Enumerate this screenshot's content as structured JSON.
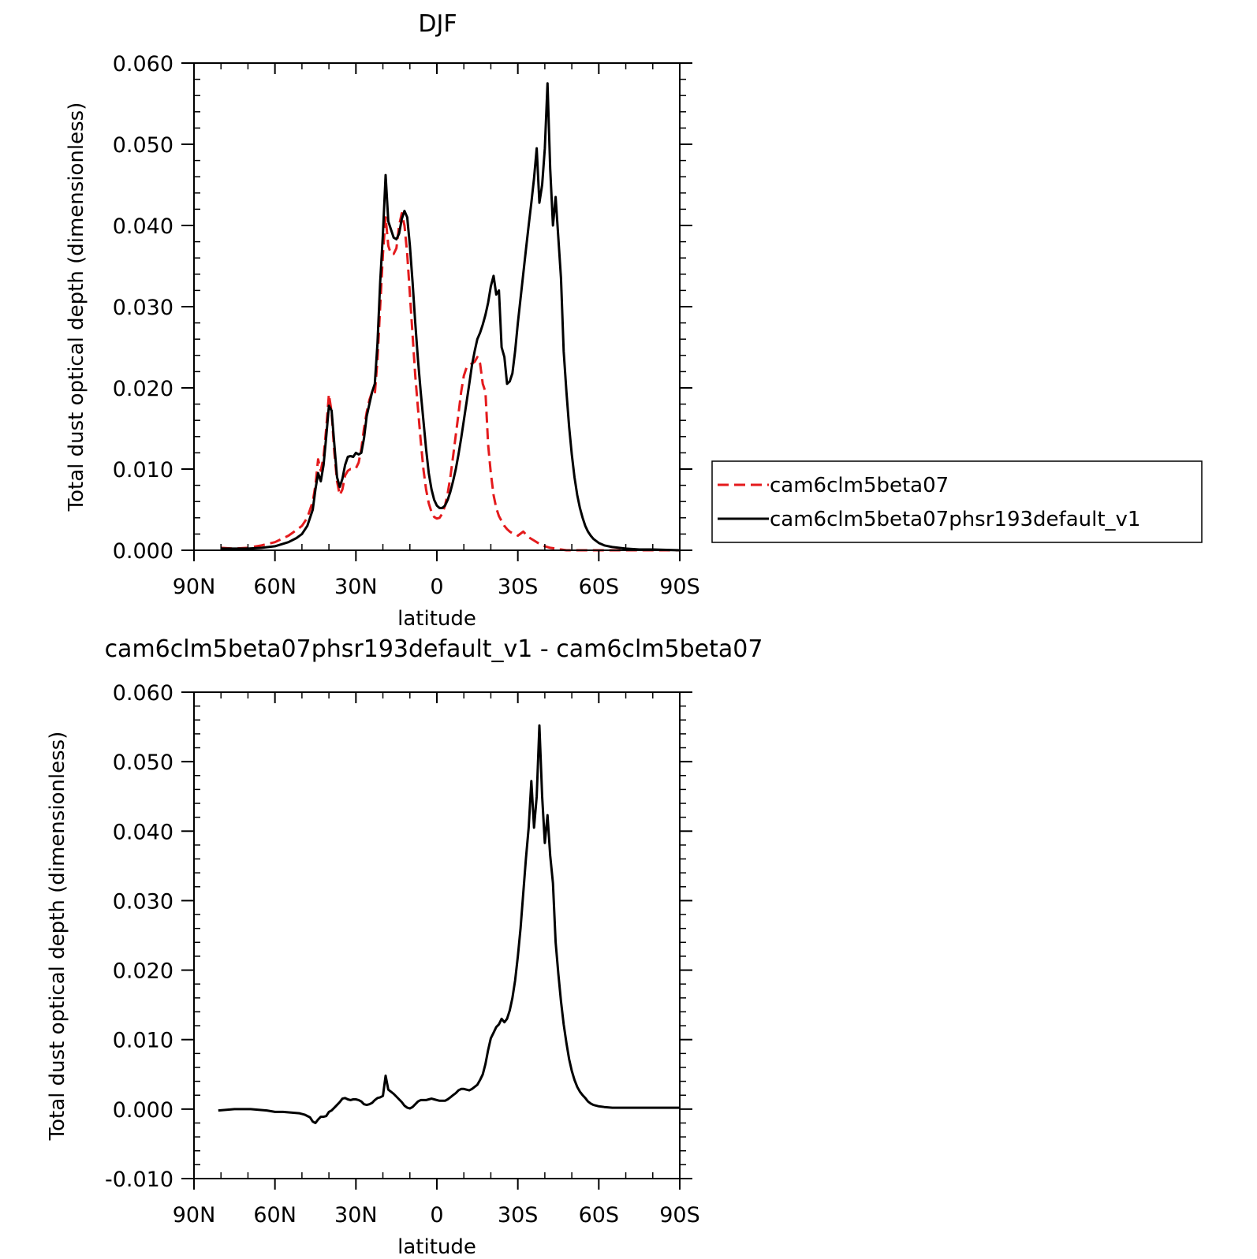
{
  "chart_data": [
    {
      "type": "line",
      "title": "DJF",
      "xlabel": "latitude",
      "ylabel": "Total dust optical depth (dimensionless)",
      "xlim": [
        90,
        -90
      ],
      "ylim": [
        0,
        0.06
      ],
      "xticks": [
        90,
        60,
        30,
        0,
        -30,
        -60,
        -90
      ],
      "xtick_labels": [
        "90N",
        "60N",
        "30N",
        "0",
        "30S",
        "60S",
        "90S"
      ],
      "yticks": [
        0,
        0.01,
        0.02,
        0.03,
        0.04,
        0.05,
        0.06
      ],
      "ytick_labels": [
        "0.000",
        "0.010",
        "0.020",
        "0.030",
        "0.040",
        "0.050",
        "0.060"
      ],
      "legend_position": "right",
      "grid": false,
      "series": [
        {
          "name": "cam6clm5beta07",
          "color": "#e41a1c",
          "dash": "dashed",
          "x": [
            80,
            75,
            70,
            65,
            60,
            55,
            52,
            50,
            48,
            46,
            45,
            44,
            43,
            42,
            41,
            40,
            39,
            38,
            37,
            36,
            35,
            34,
            33,
            32,
            31,
            30,
            29,
            28,
            27,
            26,
            25,
            24,
            23,
            22,
            21,
            20,
            19,
            18,
            17,
            16,
            15,
            14,
            13,
            12,
            11,
            10,
            9,
            8,
            7,
            6,
            5,
            4,
            3,
            2,
            1,
            0,
            -1,
            -2,
            -3,
            -4,
            -5,
            -6,
            -7,
            -8,
            -9,
            -10,
            -11,
            -12,
            -13,
            -14,
            -15,
            -16,
            -17,
            -18,
            -19,
            -20,
            -21,
            -22,
            -23,
            -24,
            -25,
            -26,
            -27,
            -28,
            -29,
            -30,
            -32,
            -34,
            -36,
            -38,
            -40,
            -42,
            -44,
            -45,
            -46,
            -48,
            -50,
            -55,
            -60,
            -65,
            -70,
            -80,
            -90
          ],
          "y": [
            0.0003,
            0.0002,
            0.0003,
            0.0006,
            0.001,
            0.0018,
            0.0025,
            0.003,
            0.004,
            0.006,
            0.008,
            0.0112,
            0.0098,
            0.0115,
            0.015,
            0.0192,
            0.017,
            0.012,
            0.0085,
            0.0068,
            0.0075,
            0.0092,
            0.0098,
            0.01,
            0.01,
            0.0101,
            0.0108,
            0.0125,
            0.015,
            0.017,
            0.0185,
            0.0195,
            0.0192,
            0.0235,
            0.03,
            0.0365,
            0.041,
            0.0375,
            0.0365,
            0.0365,
            0.0372,
            0.04,
            0.0415,
            0.04,
            0.0365,
            0.0315,
            0.0265,
            0.0215,
            0.0175,
            0.0135,
            0.01,
            0.0075,
            0.0058,
            0.0047,
            0.0041,
            0.0039,
            0.004,
            0.0045,
            0.0055,
            0.007,
            0.009,
            0.0115,
            0.0142,
            0.0168,
            0.0195,
            0.0215,
            0.0225,
            0.0228,
            0.023,
            0.0232,
            0.0238,
            0.023,
            0.0205,
            0.0195,
            0.013,
            0.0095,
            0.0068,
            0.0052,
            0.0042,
            0.0036,
            0.003,
            0.0026,
            0.0023,
            0.0021,
            0.002,
            0.0018,
            0.0023,
            0.0016,
            0.0012,
            0.0008,
            0.0005,
            0.0003,
            0.0002,
            0.0001,
            0.0001,
            0.0,
            0.0,
            0.0,
            0.0,
            0.0,
            0.0,
            0.0,
            0.0
          ]
        },
        {
          "name": "cam6clm5beta07phsr193default_v1",
          "color": "#000000",
          "dash": "solid",
          "x": [
            80,
            75,
            70,
            65,
            60,
            55,
            52,
            50,
            48,
            46,
            45,
            44,
            43,
            42,
            41,
            40,
            39,
            38,
            37,
            36,
            35,
            34,
            33,
            32,
            31,
            30,
            29,
            28,
            27,
            26,
            25,
            24,
            23,
            22,
            21,
            20,
            19,
            18,
            17,
            16,
            15,
            14,
            13,
            12,
            11,
            10,
            9,
            8,
            7,
            6,
            5,
            4,
            3,
            2,
            1,
            0,
            -1,
            -2,
            -3,
            -4,
            -5,
            -6,
            -7,
            -8,
            -9,
            -10,
            -11,
            -12,
            -13,
            -14,
            -15,
            -16,
            -17,
            -18,
            -19,
            -20,
            -21,
            -22,
            -23,
            -24,
            -25,
            -26,
            -27,
            -28,
            -29,
            -30,
            -31,
            -32,
            -33,
            -34,
            -35,
            -36,
            -37,
            -38,
            -39,
            -40,
            -41,
            -42,
            -43,
            -44,
            -45,
            -46,
            -47,
            -48,
            -49,
            -50,
            -51,
            -52,
            -53,
            -54,
            -55,
            -56,
            -57,
            -58,
            -60,
            -62,
            -65,
            -70,
            -75,
            -80,
            -90
          ],
          "y": [
            0.0002,
            0.0002,
            0.0002,
            0.0003,
            0.0005,
            0.001,
            0.0015,
            0.002,
            0.003,
            0.005,
            0.0075,
            0.0095,
            0.0085,
            0.0105,
            0.014,
            0.0178,
            0.0172,
            0.013,
            0.009,
            0.0078,
            0.0088,
            0.0105,
            0.0115,
            0.0116,
            0.0115,
            0.012,
            0.0118,
            0.012,
            0.0138,
            0.0165,
            0.018,
            0.0195,
            0.0205,
            0.0255,
            0.033,
            0.039,
            0.0462,
            0.0405,
            0.0395,
            0.0385,
            0.0383,
            0.039,
            0.0408,
            0.0418,
            0.041,
            0.0375,
            0.033,
            0.028,
            0.0235,
            0.0195,
            0.016,
            0.0125,
            0.0095,
            0.0075,
            0.0062,
            0.0055,
            0.0052,
            0.0052,
            0.0055,
            0.0062,
            0.0072,
            0.0085,
            0.01,
            0.0118,
            0.0138,
            0.016,
            0.0182,
            0.0205,
            0.0228,
            0.0245,
            0.026,
            0.0268,
            0.0278,
            0.029,
            0.0305,
            0.0325,
            0.0338,
            0.0315,
            0.032,
            0.025,
            0.0238,
            0.0205,
            0.0208,
            0.0218,
            0.0245,
            0.028,
            0.031,
            0.034,
            0.037,
            0.04,
            0.0428,
            0.0458,
            0.0495,
            0.0428,
            0.045,
            0.0495,
            0.0575,
            0.047,
            0.04,
            0.0435,
            0.0385,
            0.0335,
            0.0245,
            0.0195,
            0.0152,
            0.0118,
            0.009,
            0.0068,
            0.0052,
            0.004,
            0.003,
            0.0023,
            0.0018,
            0.0014,
            0.0009,
            0.0006,
            0.0004,
            0.0002,
            0.0001,
            0.0001,
            0.0
          ]
        }
      ]
    },
    {
      "type": "line",
      "title": "cam6clm5beta07phsr193default_v1 - cam6clm5beta07",
      "xlabel": "latitude",
      "ylabel": "Total dust optical depth (dimensionless)",
      "xlim": [
        90,
        -90
      ],
      "ylim": [
        -0.01,
        0.06
      ],
      "xticks": [
        90,
        60,
        30,
        0,
        -30,
        -60,
        -90
      ],
      "xtick_labels": [
        "90N",
        "60N",
        "30N",
        "0",
        "30S",
        "60S",
        "90S"
      ],
      "yticks": [
        -0.01,
        0,
        0.01,
        0.02,
        0.03,
        0.04,
        0.05,
        0.06
      ],
      "ytick_labels": [
        "-0.010",
        "0.000",
        "0.010",
        "0.020",
        "0.030",
        "0.040",
        "0.050",
        "0.060"
      ],
      "grid": false,
      "series": [
        {
          "color": "#000000",
          "dash": "solid",
          "x": [
            81,
            78,
            75,
            72,
            69,
            66,
            63,
            60,
            57,
            54,
            51,
            49,
            47,
            46,
            45,
            44,
            43,
            42,
            41,
            40,
            39,
            38,
            37,
            36,
            35,
            34,
            33,
            32,
            31,
            30,
            29,
            28,
            27,
            26,
            25,
            24,
            23,
            22,
            21,
            20,
            19,
            18,
            17,
            16,
            15,
            14,
            13,
            12,
            11,
            10,
            9,
            8,
            7,
            6,
            5,
            4,
            3,
            2,
            1,
            0,
            -1,
            -2,
            -3,
            -4,
            -5,
            -6,
            -7,
            -8,
            -9,
            -10,
            -11,
            -12,
            -13,
            -14,
            -15,
            -16,
            -17,
            -18,
            -19,
            -20,
            -21,
            -22,
            -23,
            -24,
            -25,
            -26,
            -27,
            -28,
            -29,
            -30,
            -31,
            -32,
            -33,
            -34,
            -35,
            -36,
            -37,
            -38,
            -39,
            -40,
            -41,
            -42,
            -43,
            -44,
            -45,
            -46,
            -47,
            -48,
            -49,
            -50,
            -51,
            -52,
            -53,
            -54,
            -55,
            -56,
            -57,
            -58,
            -60,
            -62,
            -65,
            -70,
            -75,
            -80,
            -90
          ],
          "y": [
            -0.0002,
            -0.0001,
            0.0,
            0.0,
            0.0,
            -0.0001,
            -0.0002,
            -0.0004,
            -0.0004,
            -0.0005,
            -0.0006,
            -0.0008,
            -0.0012,
            -0.0018,
            -0.002,
            -0.0015,
            -0.0011,
            -0.0011,
            -0.001,
            -0.0004,
            -0.0002,
            0.0002,
            0.0006,
            0.001,
            0.0015,
            0.0016,
            0.0014,
            0.0013,
            0.0014,
            0.0014,
            0.0013,
            0.0011,
            0.0007,
            0.0006,
            0.0007,
            0.0009,
            0.0013,
            0.0016,
            0.0017,
            0.0019,
            0.0048,
            0.0028,
            0.0025,
            0.0022,
            0.0018,
            0.0014,
            0.001,
            0.0005,
            0.0002,
            0.0001,
            0.0003,
            0.0007,
            0.0011,
            0.0013,
            0.0013,
            0.0013,
            0.0014,
            0.0015,
            0.0014,
            0.0013,
            0.0012,
            0.0012,
            0.0012,
            0.0014,
            0.0017,
            0.002,
            0.0023,
            0.0027,
            0.0029,
            0.0029,
            0.0028,
            0.0027,
            0.0029,
            0.0032,
            0.0035,
            0.0042,
            0.005,
            0.0065,
            0.0085,
            0.0102,
            0.011,
            0.0118,
            0.0122,
            0.013,
            0.0125,
            0.013,
            0.0142,
            0.016,
            0.0185,
            0.022,
            0.026,
            0.031,
            0.036,
            0.0405,
            0.0472,
            0.0405,
            0.045,
            0.0552,
            0.045,
            0.0383,
            0.0423,
            0.0365,
            0.0325,
            0.024,
            0.0195,
            0.0155,
            0.0122,
            0.0095,
            0.0072,
            0.0055,
            0.0042,
            0.0032,
            0.0025,
            0.002,
            0.0016,
            0.0011,
            0.0008,
            0.0006,
            0.0004,
            0.0003,
            0.0002,
            0.0002,
            0.0002,
            0.0002,
            0.0002
          ]
        }
      ]
    }
  ]
}
